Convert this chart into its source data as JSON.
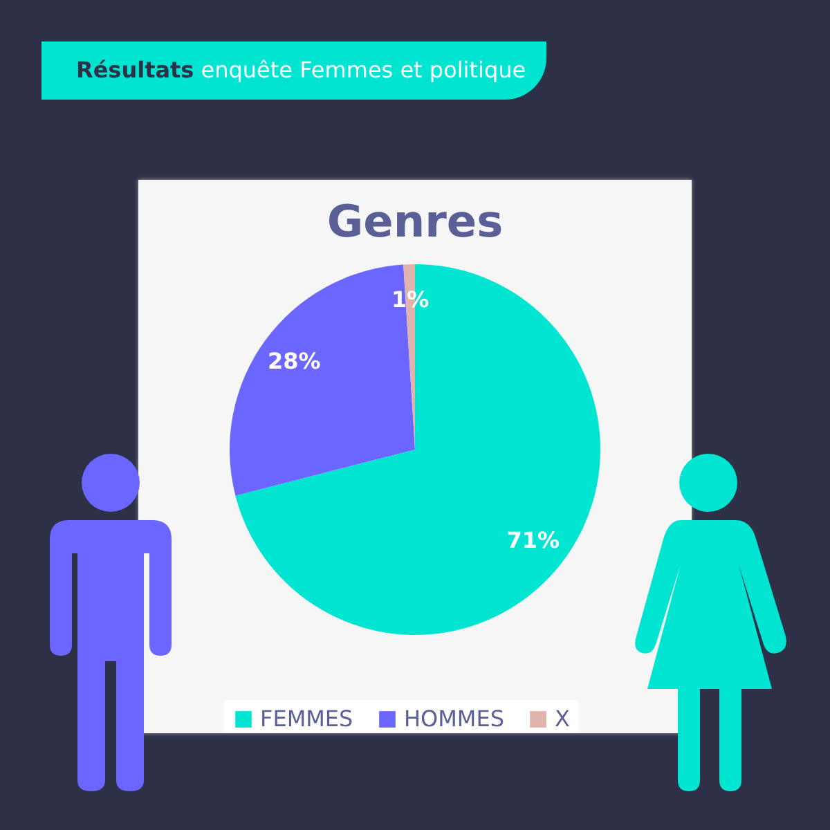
{
  "chart_data": {
    "type": "pie",
    "title": "Genres",
    "subtitle": "Résultats enquête Femmes et politique",
    "categories": [
      "FEMMES",
      "HOMMES",
      "X"
    ],
    "values": [
      71,
      28,
      1
    ],
    "colors": [
      "#00e5d1",
      "#6b66ff",
      "#e0b4ac"
    ],
    "value_labels": [
      "71%",
      "28%",
      "1%"
    ],
    "legend": "bottom"
  }
}
